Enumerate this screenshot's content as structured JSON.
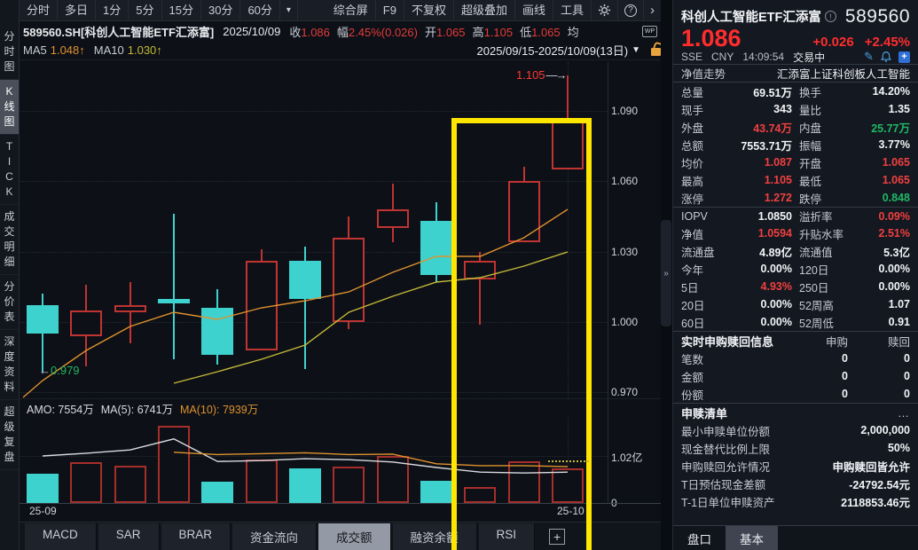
{
  "icons": {
    "dropdown": "▼",
    "period_more": "▾",
    "chevron": "›",
    "arrow_right": "→",
    "arrow_left": "←",
    "more": "…",
    "collapse": "»",
    "plus": "+",
    "wp": "WP",
    "pencil": "✎",
    "help": "?",
    "info": "!"
  },
  "toolbar": {
    "periods": [
      "分时",
      "多日",
      "1分",
      "5分",
      "15分",
      "30分",
      "60分"
    ],
    "right_items": [
      "综合屏",
      "F9",
      "不复权",
      "超级叠加",
      "画线",
      "工具"
    ]
  },
  "info_bar": {
    "symbol": "589560.SH[科创人工智能ETF汇添富]",
    "date": "2025/10/09",
    "fields": [
      {
        "label": "收",
        "value": "1.086"
      },
      {
        "label": "幅",
        "value": "2.45%(0.026)"
      },
      {
        "label": "开",
        "value": "1.065"
      },
      {
        "label": "高",
        "value": "1.105"
      },
      {
        "label": "低",
        "value": "1.065"
      },
      {
        "label": "均",
        "value": ""
      }
    ],
    "range": "2025/09/15-2025/10/09(13日)"
  },
  "ma_bar": {
    "ma5_label": "MA5",
    "ma5_value": "1.048↑",
    "ma10_label": "MA10",
    "ma10_value": "1.030↑"
  },
  "sidebar": {
    "items": [
      {
        "label": "分时图",
        "selected": false
      },
      {
        "label": "K线图",
        "selected": true
      },
      {
        "label": "TICK",
        "selected": false
      },
      {
        "label": "成交明细",
        "selected": false
      },
      {
        "label": "分价表",
        "selected": false
      },
      {
        "label": "深度资料",
        "selected": false
      },
      {
        "label": "超级复盘",
        "selected": false
      }
    ]
  },
  "chart_data": {
    "type": "candlestick",
    "title": "589560.SH 科创人工智能ETF汇添富 日K",
    "x_labels": [
      "25-09",
      "25-10"
    ],
    "y_ticks": [
      1.09,
      1.06,
      1.03,
      1.0,
      0.97
    ],
    "high_annotation": "1.105",
    "low_annotation": "0.979",
    "candles": [
      {
        "o": 1.007,
        "h": 1.012,
        "l": 0.979,
        "c": 0.995,
        "dir": "down"
      },
      {
        "o": 0.994,
        "h": 1.016,
        "l": 0.981,
        "c": 1.005,
        "dir": "up"
      },
      {
        "o": 1.004,
        "h": 1.017,
        "l": 0.991,
        "c": 1.007,
        "dir": "up"
      },
      {
        "o": 1.01,
        "h": 1.046,
        "l": 0.984,
        "c": 1.008,
        "dir": "down"
      },
      {
        "o": 1.006,
        "h": 1.014,
        "l": 0.982,
        "c": 0.986,
        "dir": "down"
      },
      {
        "o": 0.988,
        "h": 1.031,
        "l": 0.988,
        "c": 1.026,
        "dir": "up"
      },
      {
        "o": 1.026,
        "h": 1.032,
        "l": 0.98,
        "c": 1.01,
        "dir": "down"
      },
      {
        "o": 1.0,
        "h": 1.045,
        "l": 0.997,
        "c": 1.036,
        "dir": "up"
      },
      {
        "o": 1.04,
        "h": 1.059,
        "l": 1.034,
        "c": 1.048,
        "dir": "up"
      },
      {
        "o": 1.043,
        "h": 1.051,
        "l": 1.017,
        "c": 1.02,
        "dir": "down"
      },
      {
        "o": 1.018,
        "h": 1.03,
        "l": 0.999,
        "c": 1.026,
        "dir": "up"
      },
      {
        "o": 1.034,
        "h": 1.066,
        "l": 1.034,
        "c": 1.06,
        "dir": "up"
      },
      {
        "o": 1.065,
        "h": 1.105,
        "l": 1.065,
        "c": 1.086,
        "dir": "up"
      }
    ],
    "ma5": {
      "pre": 0.968,
      "values": [
        0.975,
        0.988,
        0.998,
        1.004,
        1.001,
        1.006,
        1.009,
        1.013,
        1.021,
        1.028,
        1.028,
        1.036,
        1.048
      ]
    },
    "ma10": {
      "values": [
        null,
        null,
        null,
        0.974,
        0.979,
        0.984,
        0.99,
        1.004,
        1.011,
        1.017,
        1.019,
        1.024,
        1.03
      ]
    },
    "volume": {
      "header": [
        {
          "text": "AMO: 7554万",
          "color": "#d9dbdf"
        },
        {
          "text": "MA(5): 6741万",
          "color": "#d9dbdf"
        },
        {
          "text": "MA(10): 7939万",
          "color": "#df922f"
        }
      ],
      "y_ticks": [
        {
          "label": "1.02亿",
          "v": 1.02
        },
        {
          "label": "0",
          "v": 0
        }
      ],
      "bars": [
        {
          "v": 0.64,
          "dir": "down"
        },
        {
          "v": 0.89,
          "dir": "up"
        },
        {
          "v": 0.81,
          "dir": "up"
        },
        {
          "v": 1.67,
          "dir": "up"
        },
        {
          "v": 0.46,
          "dir": "down"
        },
        {
          "v": 0.94,
          "dir": "up"
        },
        {
          "v": 0.75,
          "dir": "down"
        },
        {
          "v": 0.79,
          "dir": "up"
        },
        {
          "v": 1.02,
          "dir": "up"
        },
        {
          "v": 0.48,
          "dir": "down"
        },
        {
          "v": 0.35,
          "dir": "up"
        },
        {
          "v": 0.9,
          "dir": "up"
        },
        {
          "v": 0.76,
          "dir": "up"
        }
      ],
      "ma5": [
        1.02,
        1.08,
        1.15,
        1.39,
        0.9,
        0.92,
        0.96,
        0.94,
        0.89,
        0.77,
        0.67,
        0.65,
        0.67
      ],
      "ma10": [
        null,
        null,
        null,
        1.1,
        1.05,
        1.07,
        1.09,
        1.05,
        1.06,
        0.85,
        0.81,
        0.81,
        0.79
      ]
    }
  },
  "bottom_tabs": {
    "items": [
      {
        "label": "MACD",
        "selected": false
      },
      {
        "label": "SAR",
        "selected": false
      },
      {
        "label": "BRAR",
        "selected": false
      },
      {
        "label": "资金流向",
        "selected": false
      },
      {
        "label": "成交额",
        "selected": true
      },
      {
        "label": "融资余额",
        "selected": false
      },
      {
        "label": "RSI",
        "selected": false
      }
    ]
  },
  "quote_panel": {
    "title": "科创人工智能ETF汇添富",
    "code": "589560",
    "price": "1.086",
    "change": "+0.026",
    "change_pct": "+2.45%",
    "exchange": "SSE",
    "currency": "CNY",
    "time": "14:09:54",
    "status": "交易中",
    "nav_row": {
      "label": "净值走势",
      "value": "汇添富上证科创板人工智能"
    },
    "rows": [
      {
        "l1": "总量",
        "v1": "69.51万",
        "s1": "w",
        "l2": "换手",
        "v2": "14.20%",
        "s2": "w",
        "sep": false
      },
      {
        "l1": "现手",
        "v1": "343",
        "s1": "w",
        "l2": "量比",
        "v2": "1.35",
        "s2": "w",
        "sep": false
      },
      {
        "l1": "外盘",
        "v1": "43.74万",
        "s1": "r",
        "l2": "内盘",
        "v2": "25.77万",
        "s2": "g",
        "sep": false
      },
      {
        "l1": "总额",
        "v1": "7553.71万",
        "s1": "w",
        "l2": "振幅",
        "v2": "3.77%",
        "s2": "w",
        "sep": false
      },
      {
        "l1": "均价",
        "v1": "1.087",
        "s1": "r",
        "l2": "开盘",
        "v2": "1.065",
        "s2": "r",
        "sep": false
      },
      {
        "l1": "最高",
        "v1": "1.105",
        "s1": "r",
        "l2": "最低",
        "v2": "1.065",
        "s2": "r",
        "sep": false
      },
      {
        "l1": "涨停",
        "v1": "1.272",
        "s1": "r",
        "l2": "跌停",
        "v2": "0.848",
        "s2": "g",
        "sep": false
      },
      {
        "l1": "IOPV",
        "v1": "1.0850",
        "s1": "w",
        "l2": "溢折率",
        "v2": "0.09%",
        "s2": "r",
        "sep": true
      },
      {
        "l1": "净值",
        "v1": "1.0594",
        "s1": "r",
        "l2": "升贴水率",
        "v2": "2.51%",
        "s2": "r",
        "sep": false
      },
      {
        "l1": "流通盘",
        "v1": "4.89亿",
        "s1": "w",
        "l2": "流通值",
        "v2": "5.3亿",
        "s2": "w",
        "sep": false
      },
      {
        "l1": "今年",
        "v1": "0.00%",
        "s1": "w",
        "l2": "120日",
        "v2": "0.00%",
        "s2": "w",
        "sep": false
      },
      {
        "l1": "5日",
        "v1": "4.93%",
        "s1": "r",
        "l2": "250日",
        "v2": "0.00%",
        "s2": "w",
        "sep": false
      },
      {
        "l1": "20日",
        "v1": "0.00%",
        "s1": "w",
        "l2": "52周高",
        "v2": "1.07",
        "s2": "w",
        "sep": false
      },
      {
        "l1": "60日",
        "v1": "0.00%",
        "s1": "w",
        "l2": "52周低",
        "v2": "0.91",
        "s2": "w",
        "sep": false
      }
    ],
    "subscribe_section": {
      "title": "实时申购赎回信息",
      "col1": "申购",
      "col2": "赎回",
      "rows": [
        {
          "label": "笔数",
          "v1": "0",
          "v2": "0"
        },
        {
          "label": "金额",
          "v1": "0",
          "v2": "0"
        },
        {
          "label": "份额",
          "v1": "0",
          "v2": "0"
        }
      ]
    },
    "list_section": {
      "title": "申赎清单",
      "rows": [
        {
          "label": "最小申赎单位份额",
          "value": "2,000,000"
        },
        {
          "label": "现金替代比例上限",
          "value": "50%"
        },
        {
          "label": "申购赎回允许情况",
          "value": "申购赎回皆允许"
        },
        {
          "label": "T日预估现金差额",
          "value": "-24792.54元"
        },
        {
          "label": "T-1日单位申赎资产",
          "value": "2118853.46元"
        }
      ]
    },
    "tabs": [
      {
        "label": "盘口",
        "selected": false
      },
      {
        "label": "基本",
        "selected": true
      }
    ]
  },
  "colors": {
    "up_red": "#c03432",
    "down_cyan": "#3ed2ce",
    "ma5_orange": "#df922f",
    "ma10_yellow": "#c3b93a",
    "vol_ma5_white": "#d9dbdf",
    "highlight_yellow": "#ffe600",
    "price_red": "#ff2d2d",
    "green": "#1fb864"
  }
}
